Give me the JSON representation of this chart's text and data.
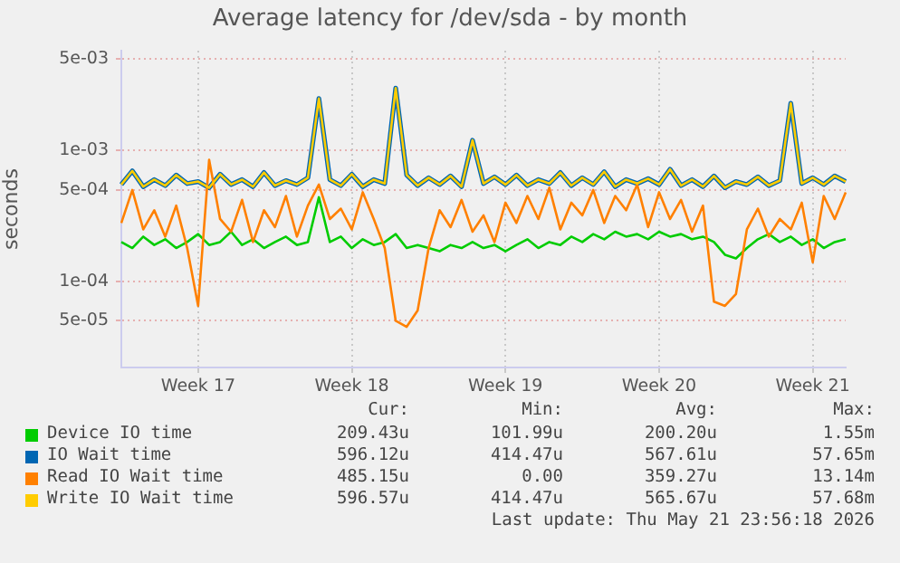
{
  "chart_data": {
    "type": "line",
    "title": "Average latency for /dev/sda - by month",
    "ylabel": "seconds",
    "log": "y",
    "grid": true,
    "legend": "bottom",
    "marker": "none",
    "line_style": "solid",
    "ylim": [
      2.2e-05,
      0.0058
    ],
    "yticks": [
      {
        "value": 5e-05,
        "label": "5e-05"
      },
      {
        "value": 0.0001,
        "label": "1e-04"
      },
      {
        "value": 0.0005,
        "label": "5e-04"
      },
      {
        "value": 0.001,
        "label": "1e-03"
      },
      {
        "value": 0.005,
        "label": "5e-03"
      }
    ],
    "categories": [
      null,
      null,
      null,
      null,
      null,
      null,
      null,
      "Week 17",
      null,
      null,
      null,
      null,
      null,
      null,
      null,
      null,
      null,
      null,
      null,
      null,
      null,
      "Week 18",
      null,
      null,
      null,
      null,
      null,
      null,
      null,
      null,
      null,
      null,
      null,
      null,
      null,
      "Week 19",
      null,
      null,
      null,
      null,
      null,
      null,
      null,
      null,
      null,
      null,
      null,
      null,
      null,
      "Week 20",
      null,
      null,
      null,
      null,
      null,
      null,
      null,
      null,
      null,
      null,
      null,
      null,
      null,
      "Week 21",
      null,
      null,
      null
    ],
    "series": [
      {
        "name": "Device IO time",
        "color": "#00cc00",
        "values": [
          0.0002,
          0.00018,
          0.00022,
          0.00019,
          0.00021,
          0.00018,
          0.0002,
          0.00023,
          0.00019,
          0.0002,
          0.00024,
          0.00019,
          0.00021,
          0.00018,
          0.0002,
          0.00022,
          0.00019,
          0.0002,
          0.00044,
          0.0002,
          0.00022,
          0.00018,
          0.00021,
          0.00019,
          0.0002,
          0.00023,
          0.00018,
          0.00019,
          0.00018,
          0.00017,
          0.00019,
          0.00018,
          0.0002,
          0.00018,
          0.00019,
          0.00017,
          0.00019,
          0.00021,
          0.00018,
          0.0002,
          0.00019,
          0.00022,
          0.0002,
          0.00023,
          0.00021,
          0.00024,
          0.00022,
          0.00023,
          0.00021,
          0.00024,
          0.00022,
          0.00023,
          0.00021,
          0.00022,
          0.0002,
          0.00016,
          0.00015,
          0.00018,
          0.00021,
          0.00023,
          0.0002,
          0.00022,
          0.00019,
          0.00021,
          0.00018,
          0.0002,
          0.00021
        ]
      },
      {
        "name": "IO Wait time",
        "color": "#0066b3",
        "values": [
          0.00055,
          0.0007,
          0.00053,
          0.0006,
          0.00054,
          0.00065,
          0.00056,
          0.00058,
          0.00052,
          0.00066,
          0.00055,
          0.0006,
          0.00053,
          0.00068,
          0.00054,
          0.00059,
          0.00055,
          0.00062,
          0.0025,
          0.0006,
          0.00054,
          0.00066,
          0.00053,
          0.0006,
          0.00056,
          0.003,
          0.00065,
          0.00054,
          0.00062,
          0.00055,
          0.00064,
          0.00053,
          0.0012,
          0.00056,
          0.00063,
          0.00055,
          0.00065,
          0.00054,
          0.0006,
          0.00056,
          0.00068,
          0.00054,
          0.00062,
          0.00055,
          0.00069,
          0.00053,
          0.0006,
          0.00056,
          0.00061,
          0.00055,
          0.00072,
          0.00054,
          0.0006,
          0.00053,
          0.00064,
          0.00052,
          0.00058,
          0.00055,
          0.00063,
          0.00054,
          0.00059,
          0.0023,
          0.00056,
          0.00062,
          0.00055,
          0.00064,
          0.00058
        ]
      },
      {
        "name": "Read IO Wait time",
        "color": "#ff8000",
        "values": [
          0.00028,
          0.0005,
          0.00025,
          0.00035,
          0.00022,
          0.00038,
          0.00018,
          6.5e-05,
          0.00085,
          0.0003,
          0.00024,
          0.00042,
          0.0002,
          0.00035,
          0.00026,
          0.00045,
          0.00022,
          0.00038,
          0.00055,
          0.0003,
          0.00036,
          0.00025,
          0.00048,
          0.0003,
          0.00018,
          5e-05,
          4.5e-05,
          6e-05,
          0.00018,
          0.00035,
          0.00026,
          0.00042,
          0.00024,
          0.00032,
          0.0002,
          0.0004,
          0.00028,
          0.00045,
          0.0003,
          0.00052,
          0.00025,
          0.0004,
          0.00032,
          0.0005,
          0.00028,
          0.00045,
          0.00035,
          0.00055,
          0.00026,
          0.00048,
          0.0003,
          0.00042,
          0.00024,
          0.00038,
          7e-05,
          6.5e-05,
          8e-05,
          0.00025,
          0.00036,
          0.00022,
          0.0003,
          0.00025,
          0.0004,
          0.00014,
          0.00045,
          0.0003,
          0.00048
        ]
      },
      {
        "name": "Write IO Wait time",
        "color": "#ffcc00",
        "values": [
          0.00055,
          0.0007,
          0.00053,
          0.0006,
          0.00054,
          0.00065,
          0.00056,
          0.00058,
          0.00052,
          0.00066,
          0.00055,
          0.0006,
          0.00053,
          0.00068,
          0.00054,
          0.00059,
          0.00055,
          0.00062,
          0.0025,
          0.0006,
          0.00054,
          0.00066,
          0.00053,
          0.0006,
          0.00056,
          0.003,
          0.00065,
          0.00054,
          0.00062,
          0.00055,
          0.00064,
          0.00053,
          0.0012,
          0.00056,
          0.00063,
          0.00055,
          0.00065,
          0.00054,
          0.0006,
          0.00056,
          0.00068,
          0.00054,
          0.00062,
          0.00055,
          0.00069,
          0.00053,
          0.0006,
          0.00056,
          0.00061,
          0.00055,
          0.00072,
          0.00054,
          0.0006,
          0.00053,
          0.00064,
          0.00052,
          0.00058,
          0.00055,
          0.00063,
          0.00054,
          0.00059,
          0.0023,
          0.00056,
          0.00062,
          0.00055,
          0.00064,
          0.00058
        ]
      }
    ],
    "annotations": [
      "Cur:",
      "Min:",
      "Avg:",
      "Max:",
      "209.43u",
      "101.99u",
      "200.20u",
      "1.55m",
      "596.12u",
      "414.47u",
      "567.61u",
      "57.65m",
      "485.15u",
      "0.00",
      "359.27u",
      "13.14m",
      "596.57u",
      "414.47u",
      "565.67u",
      "57.68m",
      "Last update: Thu May 21 23:56:18 2026"
    ]
  }
}
